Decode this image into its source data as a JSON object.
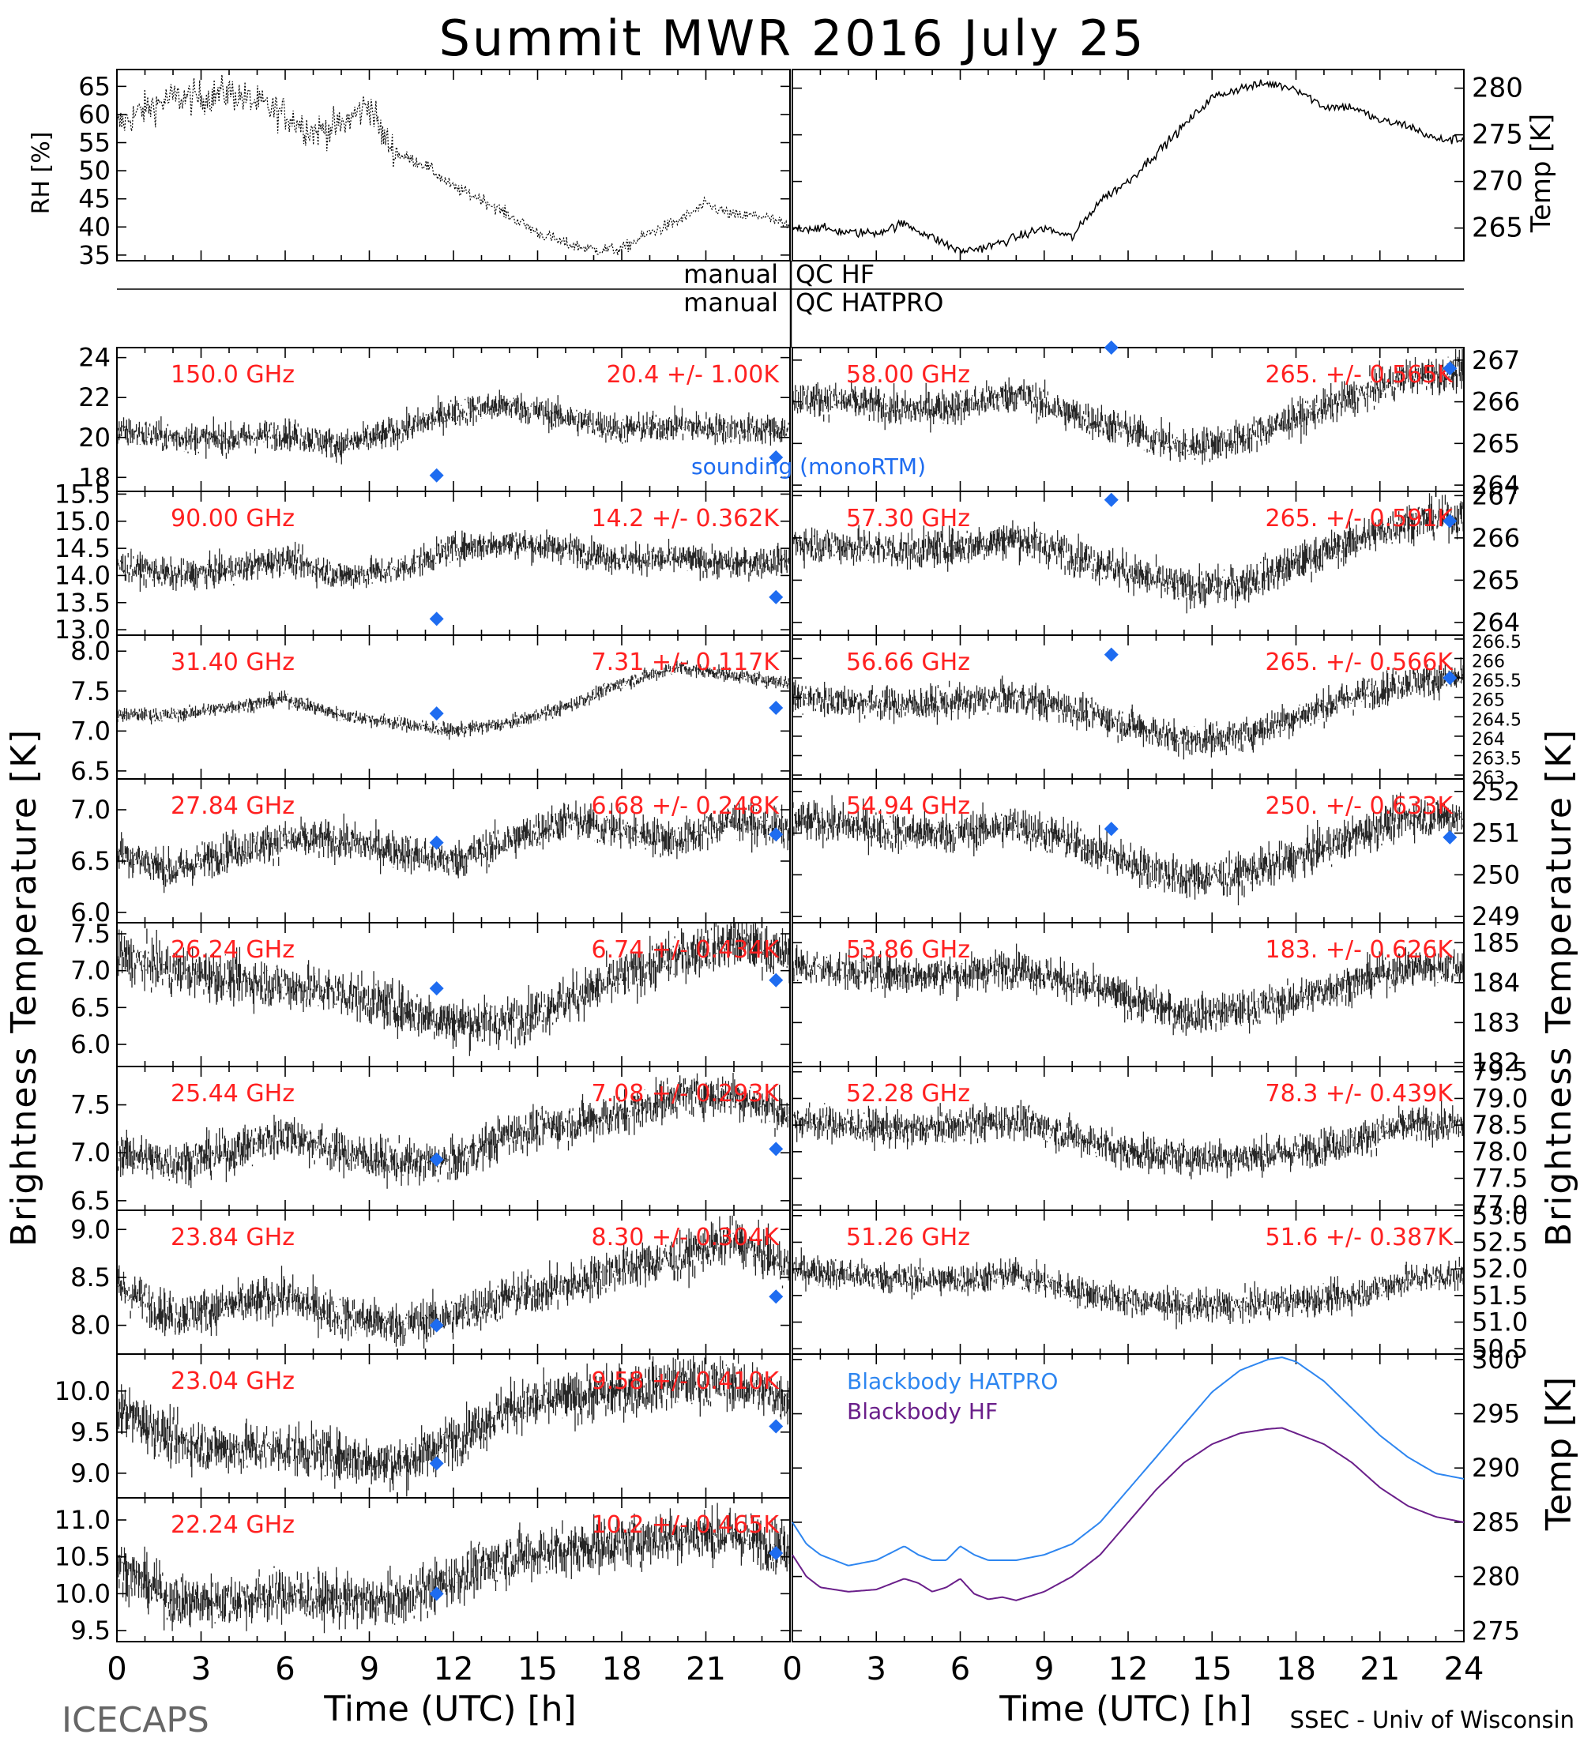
{
  "title": "Summit MWR 2016 July 25",
  "colors": {
    "foreground": "#000000",
    "label": "#ff2020",
    "sounding": "#1e6cf0",
    "bb_hatpro": "#2e86f0",
    "bb_hf": "#6a1f8a"
  },
  "labels": {
    "rh_axis": "RH [%]",
    "temp_axis": "Temp [K]",
    "tb_axis_left": "Brightness Temperature [K]",
    "tb_axis_right": "Brightness Temperature [K]",
    "bb_axis": "Temp [K]",
    "xlabel": "Time (UTC) [h]",
    "footer_left": "ICECAPS",
    "footer_right": "SSEC - Univ of Wisconsin",
    "qc_left_1": "manual",
    "qc_right_1": "QC HF",
    "qc_left_2": "manual",
    "qc_right_2": "QC HATPRO",
    "sounding_legend": "sounding (monoRTM)",
    "bb_hatpro_legend": "Blackbody HATPRO",
    "bb_hf_legend": "Blackbody HF"
  },
  "xticks": [
    "0",
    "3",
    "6",
    "9",
    "12",
    "15",
    "18",
    "21",
    "24"
  ],
  "xticks_left": [
    "0",
    "3",
    "6",
    "9",
    "12",
    "15",
    "18",
    "21"
  ],
  "chart_data": [
    {
      "type": "scatter",
      "panel": "rh",
      "ylabel": "RH [%]",
      "xlim": [
        0,
        24
      ],
      "ylim": [
        34,
        68
      ],
      "yticks": [
        35,
        40,
        45,
        50,
        55,
        60,
        65
      ],
      "series": [
        {
          "x": [
            0,
            1,
            2,
            3,
            4,
            5,
            6,
            7,
            8,
            9,
            9.5,
            10,
            11,
            12,
            13,
            14,
            15,
            16,
            17,
            18,
            19,
            20,
            21,
            22,
            23,
            24
          ],
          "y": [
            58,
            61,
            63,
            63,
            64,
            62,
            60,
            57,
            58,
            62,
            56,
            53,
            51,
            47,
            45,
            42,
            39,
            37,
            36,
            36,
            39,
            41,
            44,
            42,
            42,
            40
          ]
        }
      ]
    },
    {
      "type": "line",
      "panel": "temp",
      "ylabel": "Temp [K]",
      "xlim": [
        0,
        24
      ],
      "ylim": [
        261.5,
        282
      ],
      "yticks": [
        265,
        270,
        275,
        280
      ],
      "series": [
        {
          "x": [
            0,
            1,
            2,
            3,
            4,
            5,
            6,
            7,
            8,
            9,
            10,
            11,
            12,
            13,
            14,
            15,
            16,
            17,
            18,
            19,
            20,
            21,
            22,
            23,
            24
          ],
          "y": [
            265,
            265,
            264.5,
            264.5,
            265.5,
            264,
            262.5,
            263,
            264,
            265,
            264,
            268,
            270,
            273,
            276,
            279,
            280,
            280.5,
            280,
            278,
            278,
            276.5,
            276,
            274.5,
            274.5
          ]
        }
      ]
    },
    {
      "type": "scatter",
      "panel": "tb-left",
      "label": "150.0 GHz",
      "stats": "20.4 +/- 1.00K",
      "ylim": [
        17.3,
        24.5
      ],
      "yticks": [
        18,
        20,
        22,
        24
      ],
      "tick_labels": [
        "18",
        "20",
        "22",
        "24"
      ],
      "x": [
        0,
        2,
        4,
        6,
        8,
        10,
        12,
        14,
        16,
        18,
        20,
        22,
        24
      ],
      "y": [
        20.3,
        20,
        19.9,
        20.2,
        19.6,
        20.3,
        21.3,
        21.6,
        21,
        20.4,
        20.6,
        20.4,
        20.4
      ],
      "sounding": [
        {
          "x": 11.4,
          "y": 18.1
        },
        {
          "x": 23.5,
          "y": 19
        }
      ]
    },
    {
      "type": "scatter",
      "panel": "tb-left",
      "label": "90.00 GHz",
      "stats": "14.2 +/- 0.362K",
      "ylim": [
        12.9,
        15.55
      ],
      "yticks": [
        13.0,
        13.5,
        14.0,
        14.5,
        15.0,
        15.5
      ],
      "tick_labels": [
        "13.0",
        "13.5",
        "14.0",
        "14.5",
        "15.0",
        "15.5"
      ],
      "x": [
        0,
        2,
        4,
        6,
        8,
        10,
        12,
        14,
        16,
        18,
        20,
        22,
        24
      ],
      "y": [
        14.2,
        14.0,
        14.1,
        14.3,
        14.0,
        14.1,
        14.5,
        14.6,
        14.5,
        14.3,
        14.3,
        14.2,
        14.3
      ],
      "sounding": [
        {
          "x": 11.4,
          "y": 13.2
        },
        {
          "x": 23.5,
          "y": 13.6
        }
      ]
    },
    {
      "type": "scatter",
      "panel": "tb-left",
      "label": "31.40 GHz",
      "stats": "7.31 +/- 0.117K",
      "ylim": [
        6.4,
        8.2
      ],
      "yticks": [
        6.5,
        7.0,
        7.5,
        8.0
      ],
      "tick_labels": [
        "6.5",
        "7.0",
        "7.5",
        "8.0"
      ],
      "x": [
        0,
        2,
        4,
        6,
        8,
        10,
        12,
        14,
        16,
        18,
        20,
        22,
        24
      ],
      "y": [
        7.2,
        7.2,
        7.3,
        7.4,
        7.2,
        7.1,
        7.0,
        7.1,
        7.3,
        7.6,
        7.8,
        7.7,
        7.6
      ],
      "sounding": [
        {
          "x": 11.4,
          "y": 7.22
        },
        {
          "x": 23.5,
          "y": 7.29
        }
      ]
    },
    {
      "type": "scatter",
      "panel": "tb-left",
      "label": "27.84 GHz",
      "stats": "6.68 +/- 0.248K",
      "ylim": [
        5.9,
        7.3
      ],
      "yticks": [
        6.0,
        6.5,
        7.0
      ],
      "tick_labels": [
        "6.0",
        "6.5",
        "7.0"
      ],
      "x": [
        0,
        2,
        4,
        6,
        8,
        10,
        12,
        14,
        16,
        18,
        20,
        22,
        24
      ],
      "y": [
        6.6,
        6.4,
        6.6,
        6.7,
        6.7,
        6.6,
        6.5,
        6.7,
        6.9,
        6.8,
        6.7,
        6.9,
        6.8
      ],
      "sounding": [
        {
          "x": 11.4,
          "y": 6.68
        },
        {
          "x": 23.5,
          "y": 6.76
        }
      ]
    },
    {
      "type": "scatter",
      "panel": "tb-left",
      "label": "26.24 GHz",
      "stats": "6.74 +/- 0.434K",
      "ylim": [
        5.7,
        7.65
      ],
      "yticks": [
        6.0,
        6.5,
        7.0,
        7.5
      ],
      "tick_labels": [
        "6.0",
        "6.5",
        "7.0",
        "7.5"
      ],
      "x": [
        0,
        2,
        4,
        6,
        8,
        10,
        12,
        14,
        16,
        18,
        20,
        22,
        24
      ],
      "y": [
        7.2,
        7.0,
        6.9,
        6.8,
        6.7,
        6.5,
        6.3,
        6.3,
        6.6,
        6.9,
        7.2,
        7.4,
        7.2
      ],
      "sounding": [
        {
          "x": 11.4,
          "y": 6.76
        },
        {
          "x": 23.5,
          "y": 6.87
        }
      ]
    },
    {
      "type": "scatter",
      "panel": "tb-left",
      "label": "25.44 GHz",
      "stats": "7.08 +/- 0.293K",
      "ylim": [
        6.4,
        7.9
      ],
      "yticks": [
        6.5,
        7.0,
        7.5
      ],
      "tick_labels": [
        "6.5",
        "7.0",
        "7.5"
      ],
      "x": [
        0,
        2,
        4,
        6,
        8,
        10,
        12,
        14,
        16,
        18,
        20,
        22,
        24
      ],
      "y": [
        7.0,
        6.9,
        7.0,
        7.2,
        7.0,
        6.9,
        6.9,
        7.2,
        7.3,
        7.4,
        7.6,
        7.6,
        7.4
      ],
      "sounding": [
        {
          "x": 11.4,
          "y": 6.93
        },
        {
          "x": 23.5,
          "y": 7.04
        }
      ]
    },
    {
      "type": "scatter",
      "panel": "tb-left",
      "label": "23.84 GHz",
      "stats": "8.30 +/- 0.304K",
      "ylim": [
        7.7,
        9.2
      ],
      "yticks": [
        8.0,
        8.5,
        9.0
      ],
      "tick_labels": [
        "8.0",
        "8.5",
        "9.0"
      ],
      "x": [
        0,
        2,
        4,
        6,
        8,
        10,
        12,
        14,
        16,
        18,
        20,
        22,
        24
      ],
      "y": [
        8.4,
        8.1,
        8.2,
        8.3,
        8.1,
        8.0,
        8.1,
        8.3,
        8.4,
        8.6,
        8.7,
        8.9,
        8.6
      ],
      "sounding": [
        {
          "x": 11.4,
          "y": 8.0
        },
        {
          "x": 23.5,
          "y": 8.3
        }
      ]
    },
    {
      "type": "scatter",
      "panel": "tb-left",
      "label": "23.04 GHz",
      "stats": "9.58 +/- 0.410K",
      "ylim": [
        8.7,
        10.45
      ],
      "yticks": [
        9.0,
        9.5,
        10.0
      ],
      "tick_labels": [
        "9.0",
        "9.5",
        "10.0"
      ],
      "x": [
        0,
        2,
        4,
        6,
        8,
        10,
        12,
        14,
        16,
        18,
        20,
        22,
        24
      ],
      "y": [
        9.8,
        9.4,
        9.3,
        9.3,
        9.2,
        9.1,
        9.4,
        9.8,
        9.9,
        10.0,
        10.1,
        10.1,
        9.9
      ],
      "sounding": [
        {
          "x": 11.4,
          "y": 9.12
        },
        {
          "x": 23.5,
          "y": 9.57
        }
      ]
    },
    {
      "type": "scatter",
      "panel": "tb-left",
      "label": "22.24 GHz",
      "stats": "10.2 +/- 0.465K",
      "ylim": [
        9.35,
        11.3
      ],
      "yticks": [
        9.5,
        10.0,
        10.5,
        11.0
      ],
      "tick_labels": [
        "9.5",
        "10.0",
        "10.5",
        "11.0"
      ],
      "x": [
        0,
        2,
        4,
        6,
        8,
        10,
        12,
        14,
        16,
        18,
        20,
        22,
        24
      ],
      "y": [
        10.4,
        9.9,
        9.9,
        10.0,
        9.9,
        9.9,
        10.2,
        10.5,
        10.6,
        10.7,
        10.8,
        10.8,
        10.6
      ],
      "sounding": [
        {
          "x": 11.4,
          "y": 10.0
        },
        {
          "x": 23.5,
          "y": 10.55
        }
      ]
    },
    {
      "type": "scatter",
      "panel": "tb-right",
      "label": "58.00 GHz",
      "stats": "265. +/- 0.565K",
      "ylim": [
        263.85,
        267.3
      ],
      "yticks": [
        264,
        265,
        266,
        267
      ],
      "tick_labels": [
        "264",
        "265",
        "266",
        "267"
      ],
      "x": [
        0,
        2,
        4,
        6,
        8,
        10,
        12,
        14,
        16,
        18,
        20,
        22,
        24
      ],
      "y": [
        266.1,
        266.0,
        265.8,
        265.9,
        266.2,
        265.7,
        265.3,
        264.9,
        265.1,
        265.6,
        266.1,
        266.6,
        266.7
      ],
      "sounding": [
        {
          "x": 11.4,
          "y": 267.3
        },
        {
          "x": 23.5,
          "y": 266.8
        }
      ]
    },
    {
      "type": "scatter",
      "panel": "tb-right",
      "label": "57.30 GHz",
      "stats": "265. +/- 0.591K",
      "ylim": [
        263.7,
        267.1
      ],
      "yticks": [
        264,
        265,
        266,
        267
      ],
      "tick_labels": [
        "264",
        "265",
        "266",
        "267"
      ],
      "x": [
        0,
        2,
        4,
        6,
        8,
        10,
        12,
        14,
        16,
        18,
        20,
        22,
        24
      ],
      "y": [
        265.9,
        265.8,
        265.7,
        265.8,
        266.0,
        265.6,
        265.2,
        264.8,
        264.9,
        265.4,
        265.9,
        266.4,
        266.5
      ],
      "sounding": [
        {
          "x": 11.4,
          "y": 266.9
        },
        {
          "x": 23.5,
          "y": 266.4
        }
      ]
    },
    {
      "type": "scatter",
      "panel": "tb-right",
      "label": "56.66 GHz",
      "stats": "265. +/- 0.566K",
      "ylim": [
        262.9,
        266.6
      ],
      "yticks": [
        263,
        263.5,
        264,
        264.5,
        265,
        265.5,
        266,
        266.5
      ],
      "tick_labels": [
        "263",
        "263.5",
        "264",
        "264.5",
        "265",
        "265.5",
        "266",
        "266.5"
      ],
      "x": [
        0,
        2,
        4,
        6,
        8,
        10,
        12,
        14,
        16,
        18,
        20,
        22,
        24
      ],
      "y": [
        265.0,
        264.9,
        264.8,
        264.9,
        265.0,
        264.7,
        264.3,
        263.9,
        264.0,
        264.5,
        265.0,
        265.4,
        265.5
      ],
      "sounding": [
        {
          "x": 11.4,
          "y": 266.1
        },
        {
          "x": 23.5,
          "y": 265.5
        }
      ]
    },
    {
      "type": "scatter",
      "panel": "tb-right",
      "label": "54.94 GHz",
      "stats": "250. +/- 0.633K",
      "ylim": [
        248.85,
        252.3
      ],
      "yticks": [
        249,
        250,
        251,
        252
      ],
      "tick_labels": [
        "249",
        "250",
        "251",
        "252"
      ],
      "x": [
        0,
        2,
        4,
        6,
        8,
        10,
        12,
        14,
        16,
        18,
        20,
        22,
        24
      ],
      "y": [
        251.3,
        251.2,
        251.0,
        251.0,
        251.2,
        250.8,
        250.3,
        249.9,
        250.0,
        250.4,
        250.9,
        251.4,
        251.4
      ],
      "sounding": [
        {
          "x": 11.4,
          "y": 251.1
        },
        {
          "x": 23.5,
          "y": 250.9
        }
      ]
    },
    {
      "type": "scatter",
      "panel": "tb-right",
      "label": "53.86 GHz",
      "stats": "183. +/- 0.626K",
      "ylim": [
        181.9,
        185.5
      ],
      "yticks": [
        182,
        183,
        184,
        185
      ],
      "tick_labels": [
        "182",
        "183",
        "184",
        "185"
      ],
      "x": [
        0,
        2,
        4,
        6,
        8,
        10,
        12,
        14,
        16,
        18,
        20,
        22,
        24
      ],
      "y": [
        184.4,
        184.3,
        184.2,
        184.2,
        184.4,
        184.0,
        183.6,
        183.2,
        183.3,
        183.6,
        184.0,
        184.4,
        184.4
      ],
      "sounding": []
    },
    {
      "type": "scatter",
      "panel": "tb-right",
      "label": "52.28 GHz",
      "stats": "78.3 +/- 0.439K",
      "ylim": [
        76.9,
        79.6
      ],
      "yticks": [
        77.0,
        77.5,
        78.0,
        78.5,
        79.0,
        79.5
      ],
      "tick_labels": [
        "77.0",
        "77.5",
        "78.0",
        "78.5",
        "79.0",
        "79.5"
      ],
      "x": [
        0,
        2,
        4,
        6,
        8,
        10,
        12,
        14,
        16,
        18,
        20,
        22,
        24
      ],
      "y": [
        78.6,
        78.5,
        78.4,
        78.5,
        78.6,
        78.3,
        78.0,
        77.9,
        77.9,
        78.0,
        78.2,
        78.5,
        78.5
      ],
      "sounding": []
    },
    {
      "type": "scatter",
      "panel": "tb-right",
      "label": "51.26 GHz",
      "stats": "51.6 +/- 0.387K",
      "ylim": [
        50.4,
        53.1
      ],
      "yticks": [
        50.5,
        51.0,
        51.5,
        52.0,
        52.5,
        53.0
      ],
      "tick_labels": [
        "50.5",
        "51.0",
        "51.5",
        "52.0",
        "52.5",
        "53.0"
      ],
      "x": [
        0,
        2,
        4,
        6,
        8,
        10,
        12,
        14,
        16,
        18,
        20,
        22,
        24
      ],
      "y": [
        52.0,
        51.9,
        51.8,
        51.8,
        51.9,
        51.6,
        51.4,
        51.3,
        51.3,
        51.4,
        51.5,
        51.8,
        51.9
      ],
      "sounding": []
    },
    {
      "type": "line",
      "panel": "blackbody",
      "ylabel": "Temp [K]",
      "xlim": [
        0,
        24
      ],
      "ylim": [
        274,
        300.5
      ],
      "yticks": [
        275,
        280,
        285,
        290,
        295,
        300
      ],
      "series": [
        {
          "name": "Blackbody HATPRO",
          "x": [
            0,
            0.5,
            1,
            2,
            3,
            4,
            4.5,
            5,
            5.5,
            6,
            6.5,
            7,
            8,
            9,
            10,
            11,
            12,
            13,
            14,
            15,
            16,
            17,
            17.5,
            18,
            19,
            20,
            21,
            22,
            23,
            24
          ],
          "y": [
            285,
            283,
            282,
            281,
            281.5,
            282.8,
            282,
            281.5,
            281.5,
            282.8,
            282,
            281.5,
            281.5,
            282,
            283,
            285,
            288,
            291,
            294,
            297,
            299,
            300,
            300.2,
            299.8,
            298,
            295.5,
            293,
            291,
            289.5,
            289
          ]
        },
        {
          "name": "Blackbody HF",
          "x": [
            0,
            0.5,
            1,
            2,
            3,
            4,
            4.5,
            5,
            5.5,
            6,
            6.5,
            7,
            7.5,
            8,
            9,
            10,
            11,
            12,
            13,
            14,
            15,
            16,
            17,
            17.5,
            18,
            19,
            20,
            21,
            22,
            23,
            24
          ],
          "y": [
            282,
            280,
            279,
            278.6,
            278.8,
            279.8,
            279.4,
            278.6,
            279,
            279.8,
            278.4,
            277.9,
            278.1,
            277.8,
            278.6,
            280,
            282,
            285,
            288,
            290.5,
            292.2,
            293.2,
            293.6,
            293.7,
            293.2,
            292.2,
            290.5,
            288.2,
            286.5,
            285.5,
            285
          ]
        }
      ]
    }
  ]
}
